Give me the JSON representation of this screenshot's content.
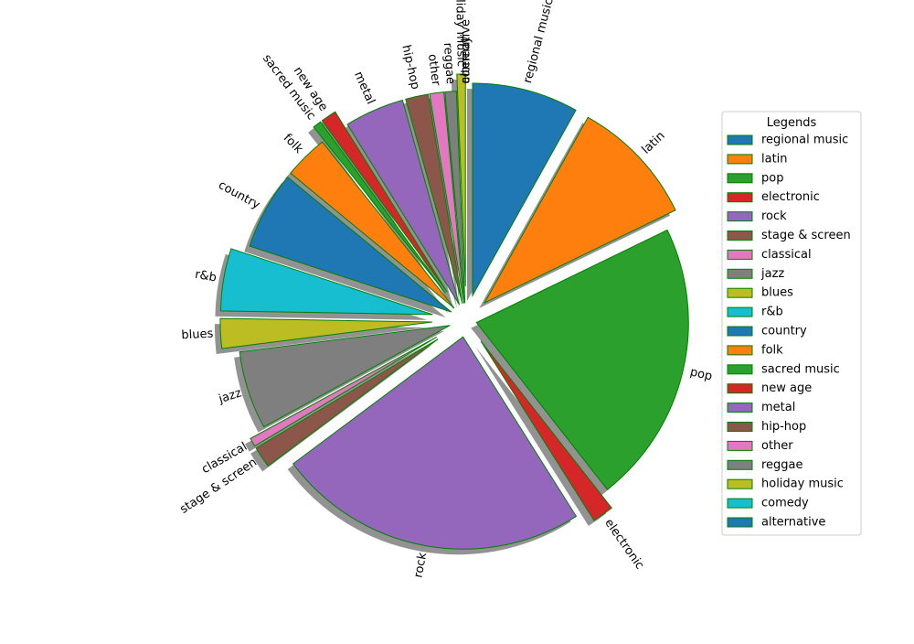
{
  "chart_data": {
    "type": "pie",
    "title": "",
    "legend_title": "Legends",
    "legend_placement": "right",
    "start_angle_deg": 90,
    "direction": "clockwise",
    "shadow": true,
    "edge_color": "#008000",
    "shadow_color": "#7f7f7f",
    "slices": [
      {
        "label": "regional music",
        "value": 7.5,
        "explode": 0.12,
        "color": "#1f77b4"
      },
      {
        "label": "latin",
        "value": 9.0,
        "explode": 0.12,
        "color": "#ff7f0e"
      },
      {
        "label": "pop",
        "value": 20.0,
        "explode": 0.05,
        "color": "#2ca02c"
      },
      {
        "label": "electronic",
        "value": 1.5,
        "explode": 0.12,
        "color": "#d62728"
      },
      {
        "label": "rock",
        "value": 22.0,
        "explode": 0.08,
        "color": "#9467bd"
      },
      {
        "label": "stage & screen",
        "value": 1.5,
        "explode": 0.16,
        "color": "#8c564b"
      },
      {
        "label": "classical",
        "value": 0.6,
        "explode": 0.16,
        "color": "#e377c2"
      },
      {
        "label": "jazz",
        "value": 5.5,
        "explode": 0.08,
        "color": "#7f7f7f"
      },
      {
        "label": "blues",
        "value": 2.1,
        "explode": 0.16,
        "color": "#bcbd22"
      },
      {
        "label": "r&b",
        "value": 4.4,
        "explode": 0.16,
        "color": "#17becf"
      },
      {
        "label": "country",
        "value": 5.5,
        "explode": 0.08,
        "color": "#1f77b4"
      },
      {
        "label": "folk",
        "value": 3.1,
        "explode": 0.08,
        "color": "#ff7f0e"
      },
      {
        "label": "sacred music",
        "value": 0.6,
        "explode": 0.16,
        "color": "#2ca02c"
      },
      {
        "label": "new age",
        "value": 1.1,
        "explode": 0.16,
        "color": "#d62728"
      },
      {
        "label": "metal",
        "value": 4.2,
        "explode": 0.08,
        "color": "#9467bd"
      },
      {
        "label": "hip-hop",
        "value": 1.6,
        "explode": 0.08,
        "color": "#8c564b"
      },
      {
        "label": "other",
        "value": 1.0,
        "explode": 0.08,
        "color": "#e377c2"
      },
      {
        "label": "reggae",
        "value": 0.8,
        "explode": 0.08,
        "color": "#7f7f7f"
      },
      {
        "label": "holiday music",
        "value": 0.6,
        "explode": 0.16,
        "color": "#bcbd22"
      },
      {
        "label": "comedy",
        "value": 0.0,
        "explode": 0.08,
        "color": "#17becf"
      },
      {
        "label": "alternative",
        "value": 0.0,
        "explode": 0.08,
        "color": "#1f77b4"
      }
    ]
  }
}
